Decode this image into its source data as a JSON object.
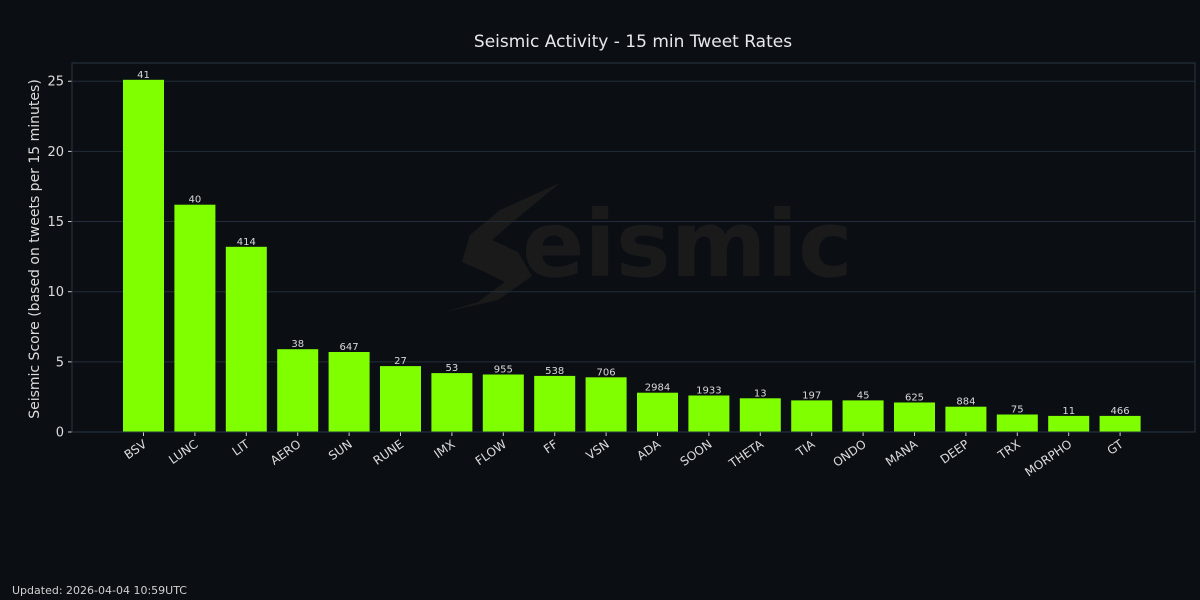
{
  "footer": {
    "updated": "Updated: 2026-04-04 10:59UTC"
  },
  "watermark": {
    "text": "eismic"
  },
  "colors": {
    "bar": "#7fff00",
    "background": "#0b0f14",
    "grid": "#222c3a"
  },
  "chart_data": {
    "type": "bar",
    "title": "Seismic Activity - 15 min Tweet Rates",
    "xlabel": "",
    "ylabel": "Seismic Score (based on tweets per 15 minutes)",
    "ylim": [
      0,
      26.3
    ],
    "yticks": [
      0,
      5,
      10,
      15,
      20,
      25
    ],
    "grid": true,
    "categories": [
      "BSV",
      "LUNC",
      "LIT",
      "AERO",
      "SUN",
      "RUNE",
      "IMX",
      "FLOW",
      "FF",
      "VSN",
      "ADA",
      "SOON",
      "THETA",
      "TIA",
      "ONDO",
      "MANA",
      "DEEP",
      "TRX",
      "MORPHO",
      "GT"
    ],
    "values": [
      25.1,
      16.2,
      13.2,
      5.9,
      5.7,
      4.7,
      4.2,
      4.1,
      4.0,
      3.9,
      2.8,
      2.6,
      2.4,
      2.25,
      2.25,
      2.1,
      1.8,
      1.25,
      1.15,
      1.15
    ],
    "data_labels": [
      "41",
      "40",
      "414",
      "38",
      "647",
      "27",
      "53",
      "955",
      "538",
      "706",
      "2984",
      "1933",
      "13",
      "197",
      "45",
      "625",
      "884",
      "75",
      "11",
      "466"
    ]
  }
}
